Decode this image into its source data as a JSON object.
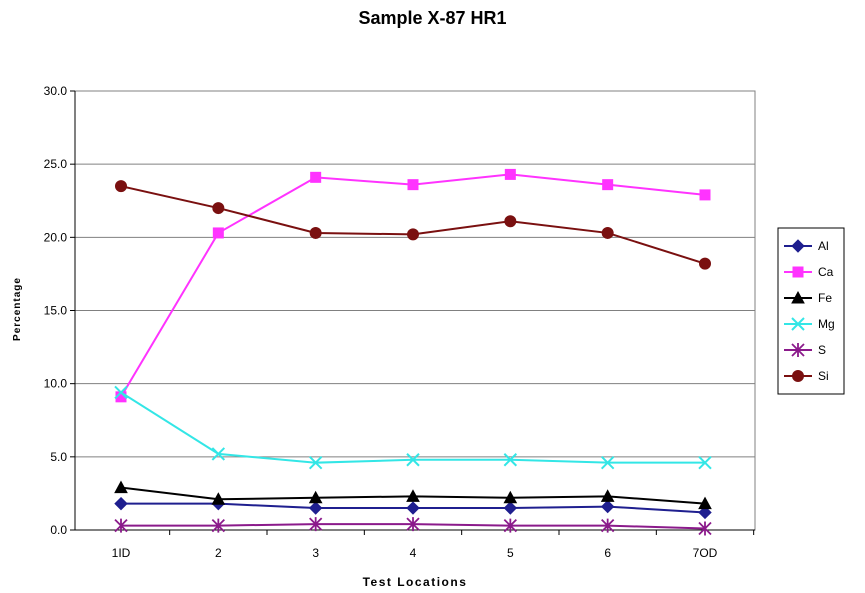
{
  "chart_data": {
    "type": "line",
    "title": "Sample X-87 HR1",
    "xlabel": "Test Locations",
    "ylabel": "Percentage",
    "categories": [
      "1ID",
      "2",
      "3",
      "4",
      "5",
      "6",
      "7OD"
    ],
    "ylim": [
      0,
      30
    ],
    "yticks": [
      "0.0",
      "5.0",
      "10.0",
      "15.0",
      "20.0",
      "25.0",
      "30.0"
    ],
    "grid": true,
    "legend_position": "right",
    "series": [
      {
        "name": "Al",
        "color": "#1f1f8f",
        "marker": "diamond",
        "values": [
          1.8,
          1.8,
          1.5,
          1.5,
          1.5,
          1.6,
          1.2
        ]
      },
      {
        "name": "Ca",
        "color": "#ff33ff",
        "marker": "square",
        "values": [
          9.1,
          20.3,
          24.1,
          23.6,
          24.3,
          23.6,
          22.9
        ]
      },
      {
        "name": "Fe",
        "color": "#000000",
        "marker": "triangle",
        "values": [
          2.9,
          2.1,
          2.2,
          2.3,
          2.2,
          2.3,
          1.8
        ]
      },
      {
        "name": "Mg",
        "color": "#33e6e6",
        "marker": "x",
        "values": [
          9.4,
          5.2,
          4.6,
          4.8,
          4.8,
          4.6,
          4.6
        ]
      },
      {
        "name": "S",
        "color": "#8b1a8b",
        "marker": "star",
        "values": [
          0.3,
          0.3,
          0.4,
          0.4,
          0.3,
          0.3,
          0.1
        ]
      },
      {
        "name": "Si",
        "color": "#7a1010",
        "marker": "circle",
        "values": [
          23.5,
          22.0,
          20.3,
          20.2,
          21.1,
          20.3,
          18.2
        ]
      }
    ]
  }
}
